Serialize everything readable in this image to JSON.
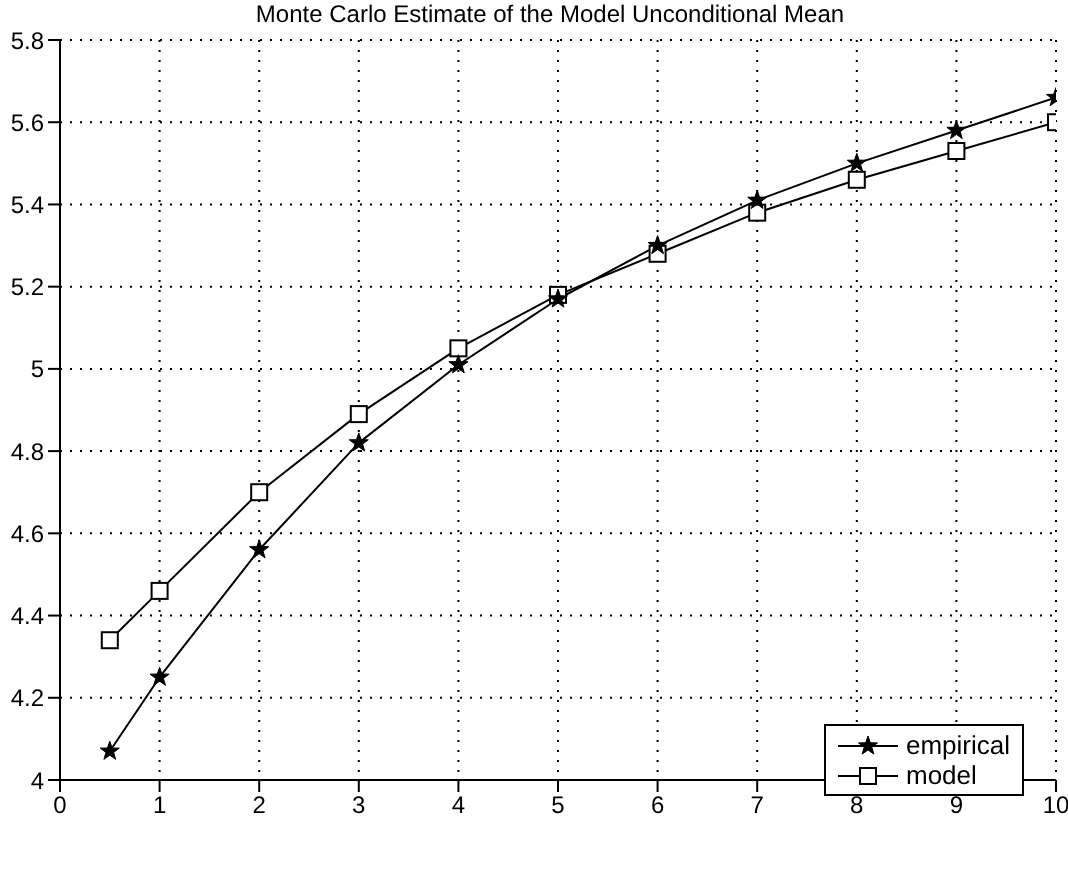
{
  "chart_data": {
    "type": "line",
    "title": "Monte Carlo Estimate of the Model Unconditional Mean",
    "x": [
      0.5,
      1,
      2,
      3,
      4,
      5,
      6,
      7,
      8,
      9,
      10
    ],
    "series": [
      {
        "name": "empirical",
        "color": "#000000",
        "marker": "star",
        "values": [
          4.07,
          4.25,
          4.56,
          4.82,
          5.01,
          5.17,
          5.3,
          5.41,
          5.5,
          5.58,
          5.66
        ]
      },
      {
        "name": "model",
        "color": "#000000",
        "marker": "square",
        "values": [
          4.34,
          4.46,
          4.7,
          4.89,
          5.05,
          5.18,
          5.28,
          5.38,
          5.46,
          5.53,
          5.6
        ]
      }
    ],
    "xlim": [
      0,
      10
    ],
    "xticks": [
      0,
      1,
      2,
      3,
      4,
      5,
      6,
      7,
      8,
      9,
      10
    ],
    "ylim": [
      4,
      5.8
    ],
    "yticks": [
      4,
      4.2,
      4.4,
      4.6,
      4.8,
      5,
      5.2,
      5.4,
      5.6,
      5.8
    ],
    "grid": true,
    "legend": "bottom right",
    "line_style": "solid"
  }
}
